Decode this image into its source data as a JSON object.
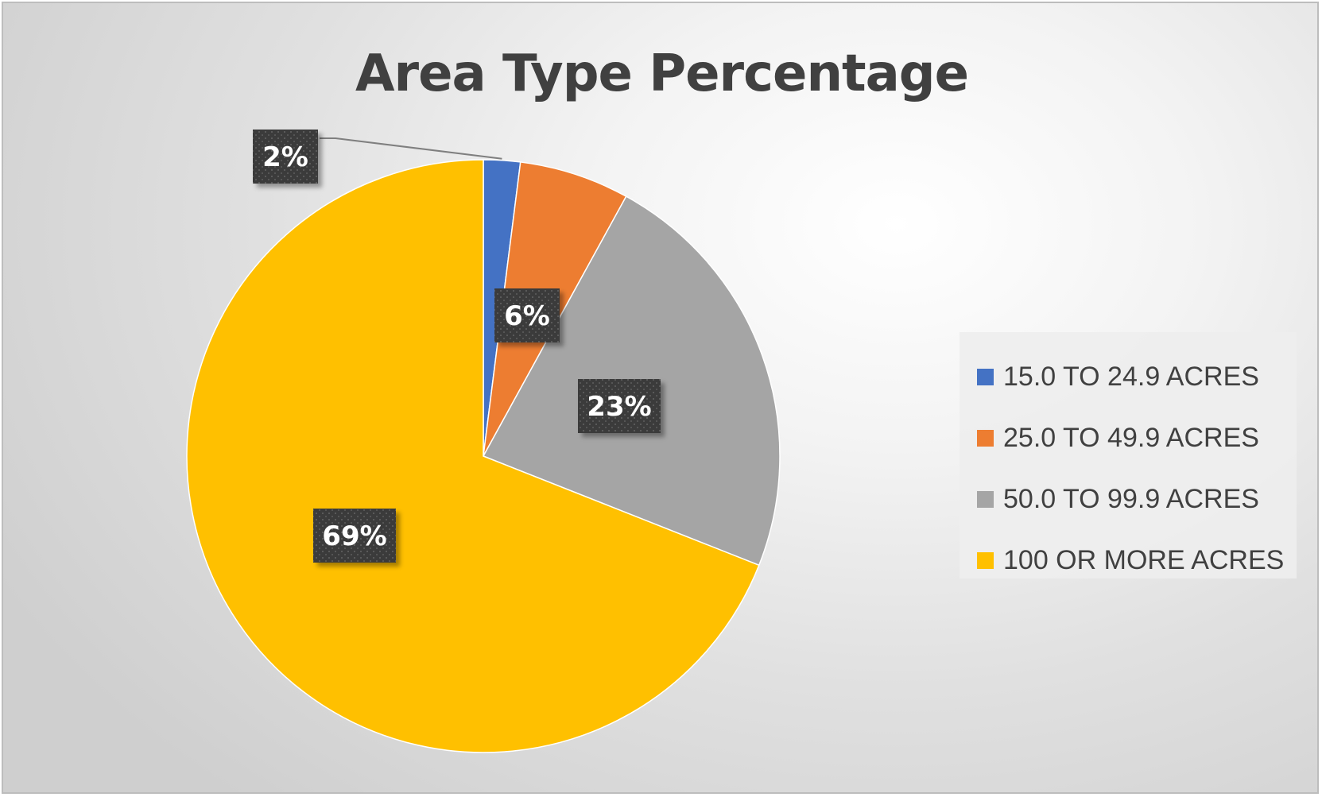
{
  "chart_data": {
    "type": "pie",
    "title": "Area Type Percentage",
    "series": [
      {
        "name": "15.0 TO 24.9 ACRES",
        "value": 2,
        "label": "2%",
        "color": "#4472C4"
      },
      {
        "name": "25.0 TO 49.9 ACRES",
        "value": 6,
        "label": "6%",
        "color": "#ED7D31"
      },
      {
        "name": "50.0 TO 99.9 ACRES",
        "value": 23,
        "label": "23%",
        "color": "#A5A5A5"
      },
      {
        "name": "100 OR MORE ACRES",
        "value": 69,
        "label": "69%",
        "color": "#FFC000"
      }
    ],
    "legend_position": "right",
    "data_labels": true
  }
}
